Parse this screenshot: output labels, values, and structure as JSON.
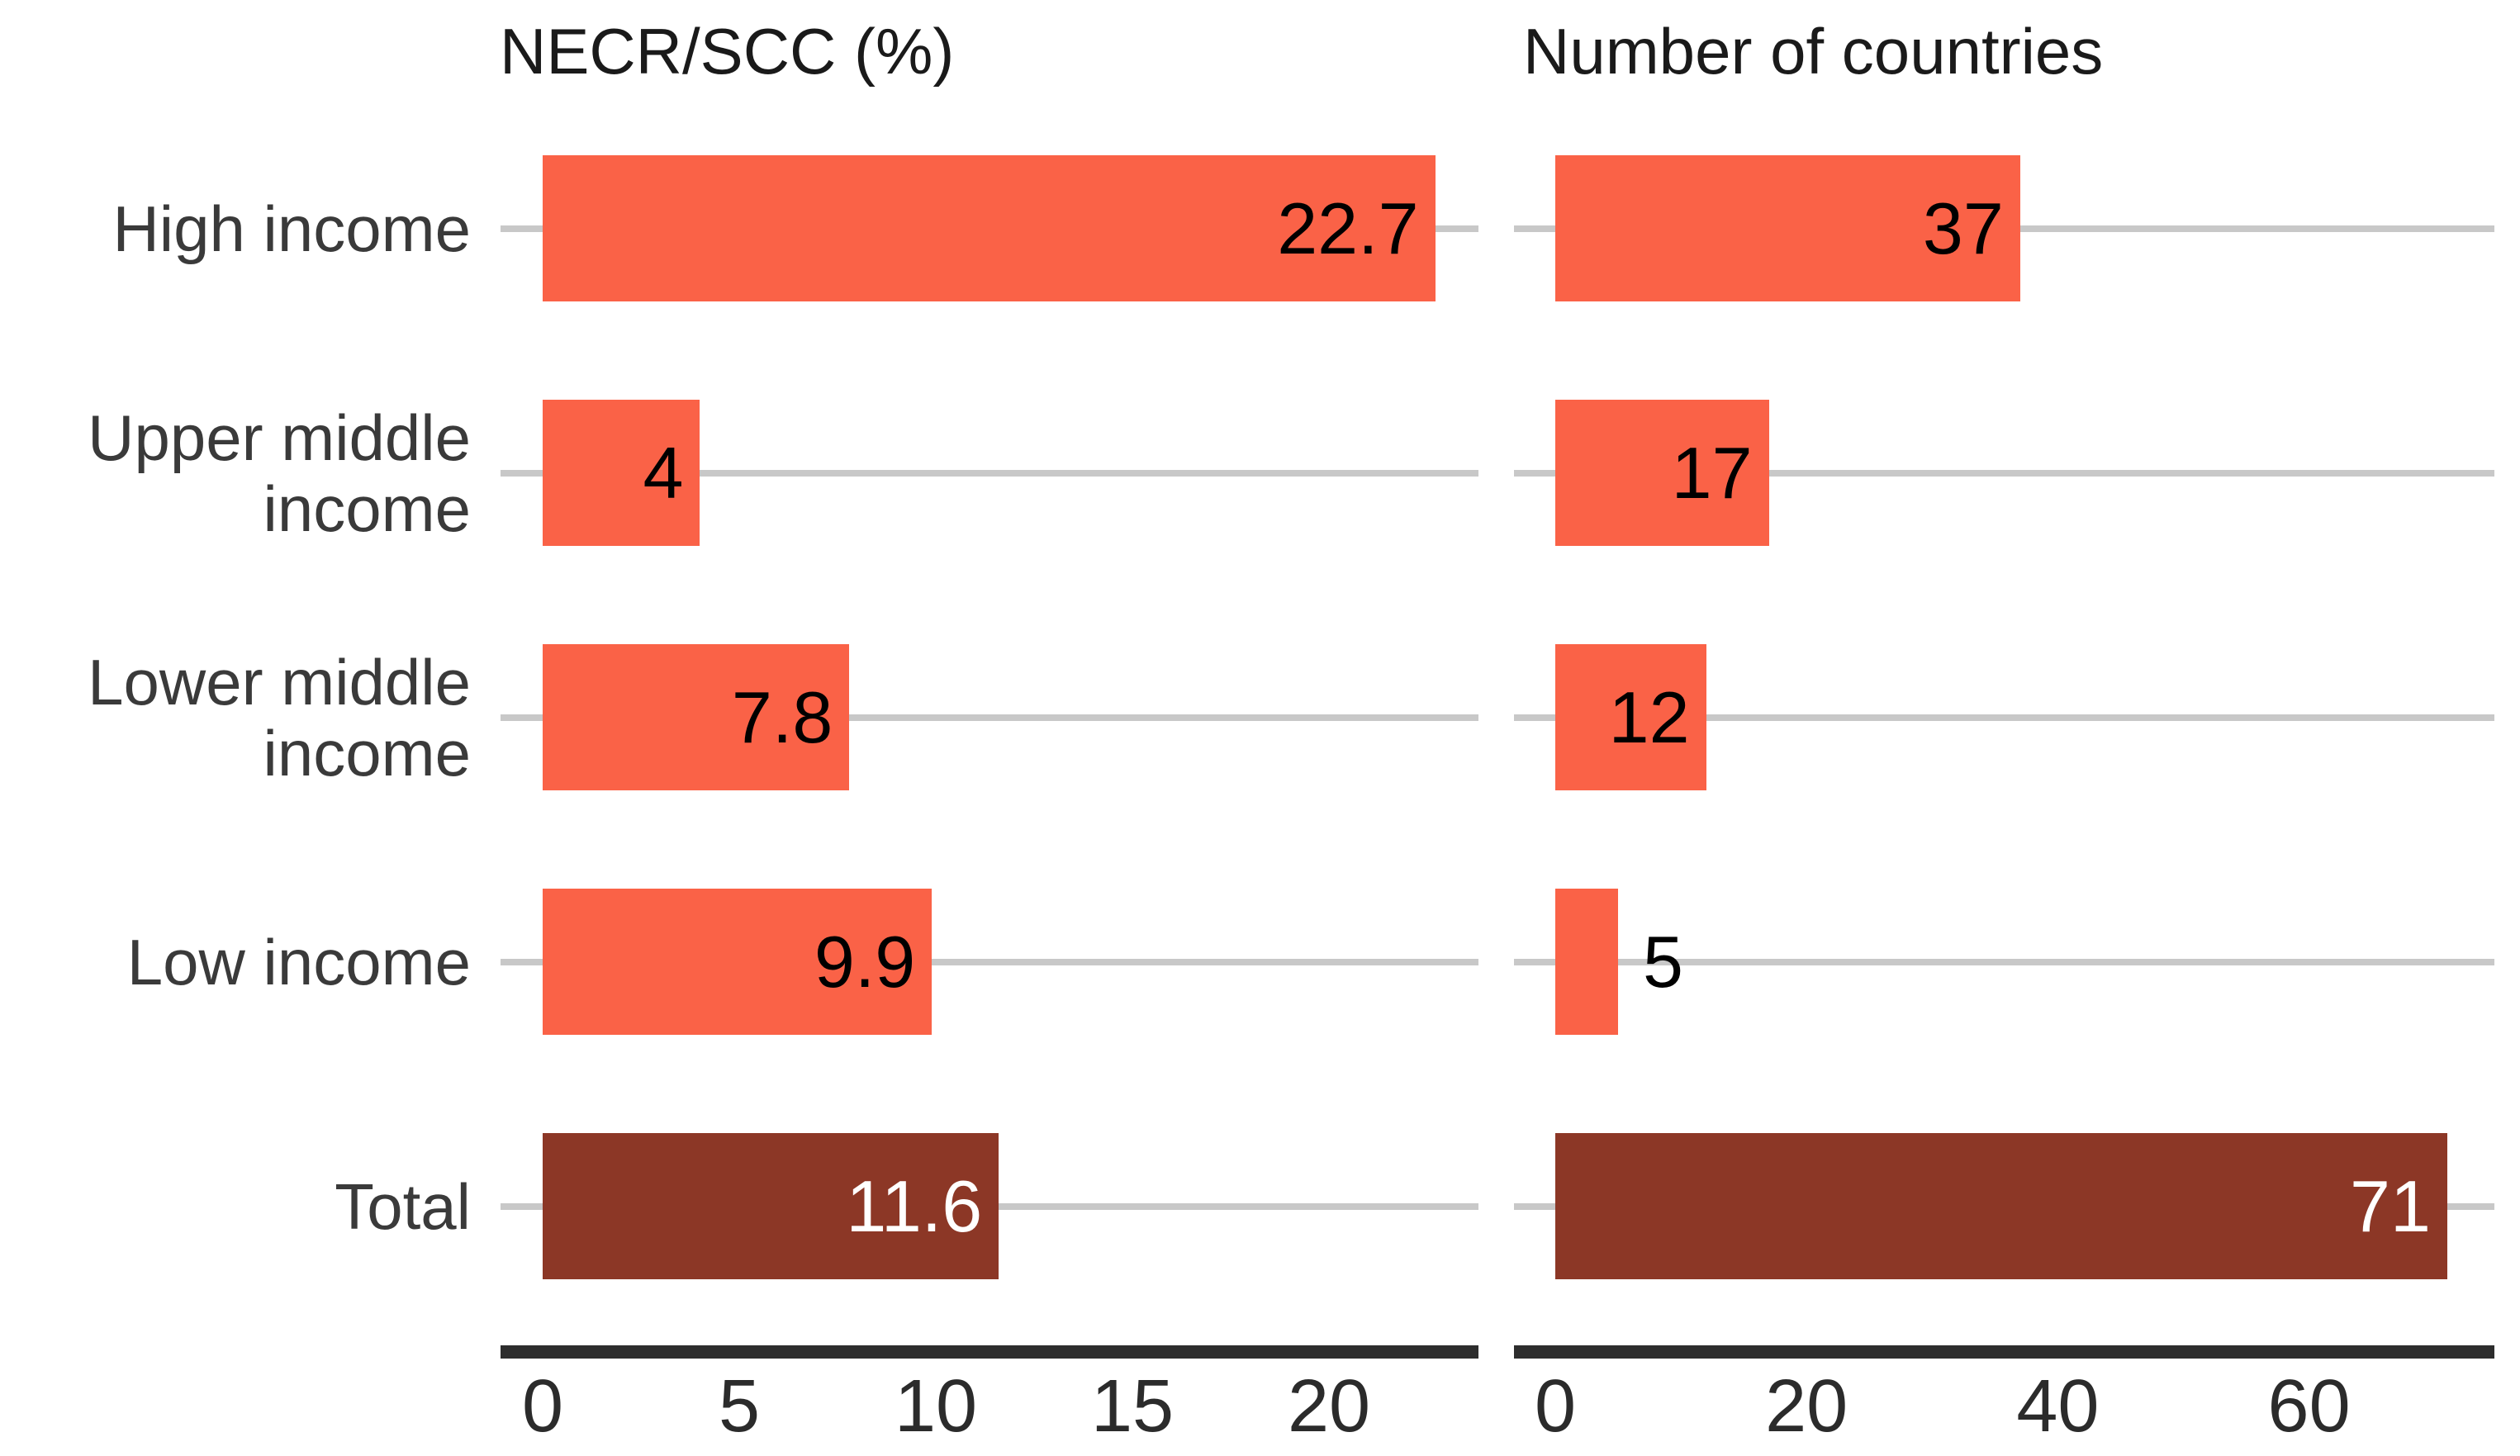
{
  "chart_data": {
    "type": "bar",
    "orientation": "horizontal",
    "title": "",
    "categories": [
      "High income",
      "Upper middle\nincome",
      "Lower middle\nincome",
      "Low income",
      "Total"
    ],
    "total_row_index": 4,
    "legend": "none",
    "grid": "horizontal gray reference line per category row",
    "panels": [
      {
        "title": "NECR/SCC (%)",
        "series_name": "NECR/SCC (%)",
        "values": [
          22.7,
          4,
          7.8,
          9.9,
          11.6
        ],
        "value_labels": [
          "22.7",
          "4",
          "7.8",
          "9.9",
          "11.6"
        ],
        "xticks": [
          0,
          5,
          10,
          15,
          20
        ],
        "xtick_labels": [
          "0",
          "5",
          "10",
          "15",
          "20"
        ],
        "xlim": [
          -1.1,
          23.8
        ]
      },
      {
        "title": "Number of countries",
        "series_name": "Number of countries",
        "values": [
          37,
          17,
          12,
          5,
          71
        ],
        "value_labels": [
          "37",
          "17",
          "12",
          "5",
          "71"
        ],
        "xticks": [
          0,
          20,
          40,
          60
        ],
        "xtick_labels": [
          "0",
          "20",
          "40",
          "60"
        ],
        "xlim": [
          -3.3,
          74.8
        ]
      }
    ],
    "colors": {
      "bar": "#fa6247",
      "total_bar": "#8c3726",
      "gridline": "#c8c8c8",
      "axis_line": "#2d2d2d",
      "category_text": "#3a3a3a",
      "title_text": "#1a1a1a",
      "value_text_on_orange": "#000000",
      "value_text_on_dark": "#ffffff",
      "background": "#ffffff"
    }
  }
}
